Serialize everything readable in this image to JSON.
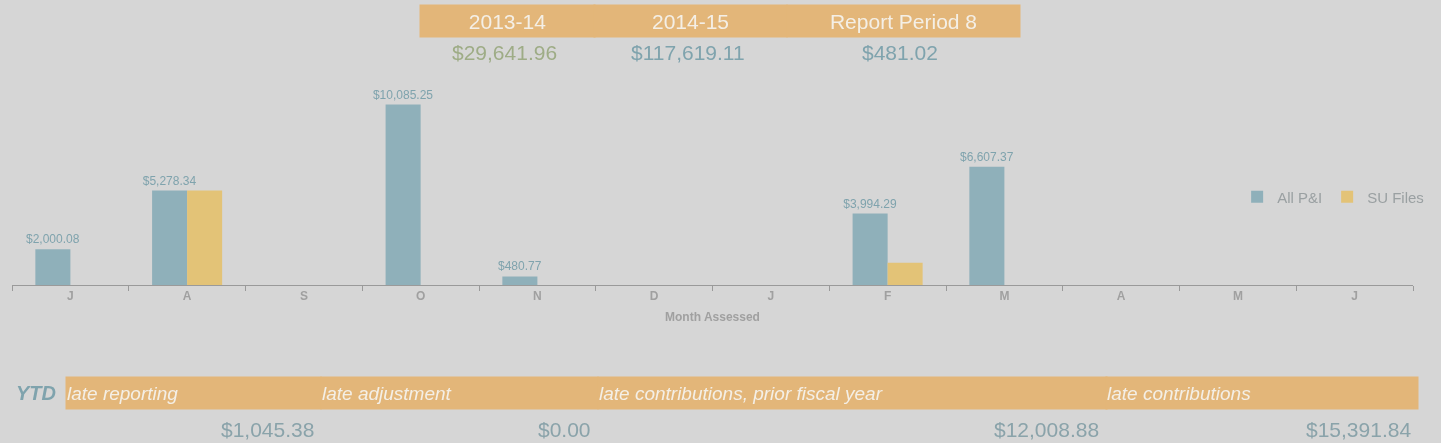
{
  "chart_data": {
    "type": "bar",
    "xlabel": "Month Assessed",
    "categories": [
      "J",
      "A",
      "S",
      "O",
      "N",
      "D",
      "J",
      "F",
      "M",
      "A",
      "M",
      "J"
    ],
    "series": [
      {
        "name": "All P&I",
        "color": "#8fb0ba",
        "values": [
          2000.08,
          5278.34,
          null,
          10085.25,
          480.77,
          null,
          null,
          3994.29,
          6607.37,
          null,
          null,
          null
        ],
        "value_labels": [
          "$2,000.08",
          "$5,278.34",
          null,
          "$10,085.25",
          "$480.77",
          null,
          null,
          "$3,994.29",
          "$6,607.37",
          null,
          null,
          null
        ]
      },
      {
        "name": "SU Files",
        "color": "#e3c377",
        "values": [
          null,
          5278.34,
          null,
          null,
          null,
          null,
          null,
          1250,
          null,
          null,
          null,
          null
        ]
      }
    ],
    "legend": "right",
    "grid": false,
    "annotations": [
      "2013-14",
      "$29,641.96",
      "2014-15",
      "$117,619.11",
      "Report Period 8",
      "$481.02",
      "YTD",
      "late reporting",
      "$1,045.38",
      "late adjustment",
      "$0.00",
      "late contributions, prior fiscal year",
      "$12,008.88",
      "late contributions",
      "$15,391.84"
    ]
  }
}
